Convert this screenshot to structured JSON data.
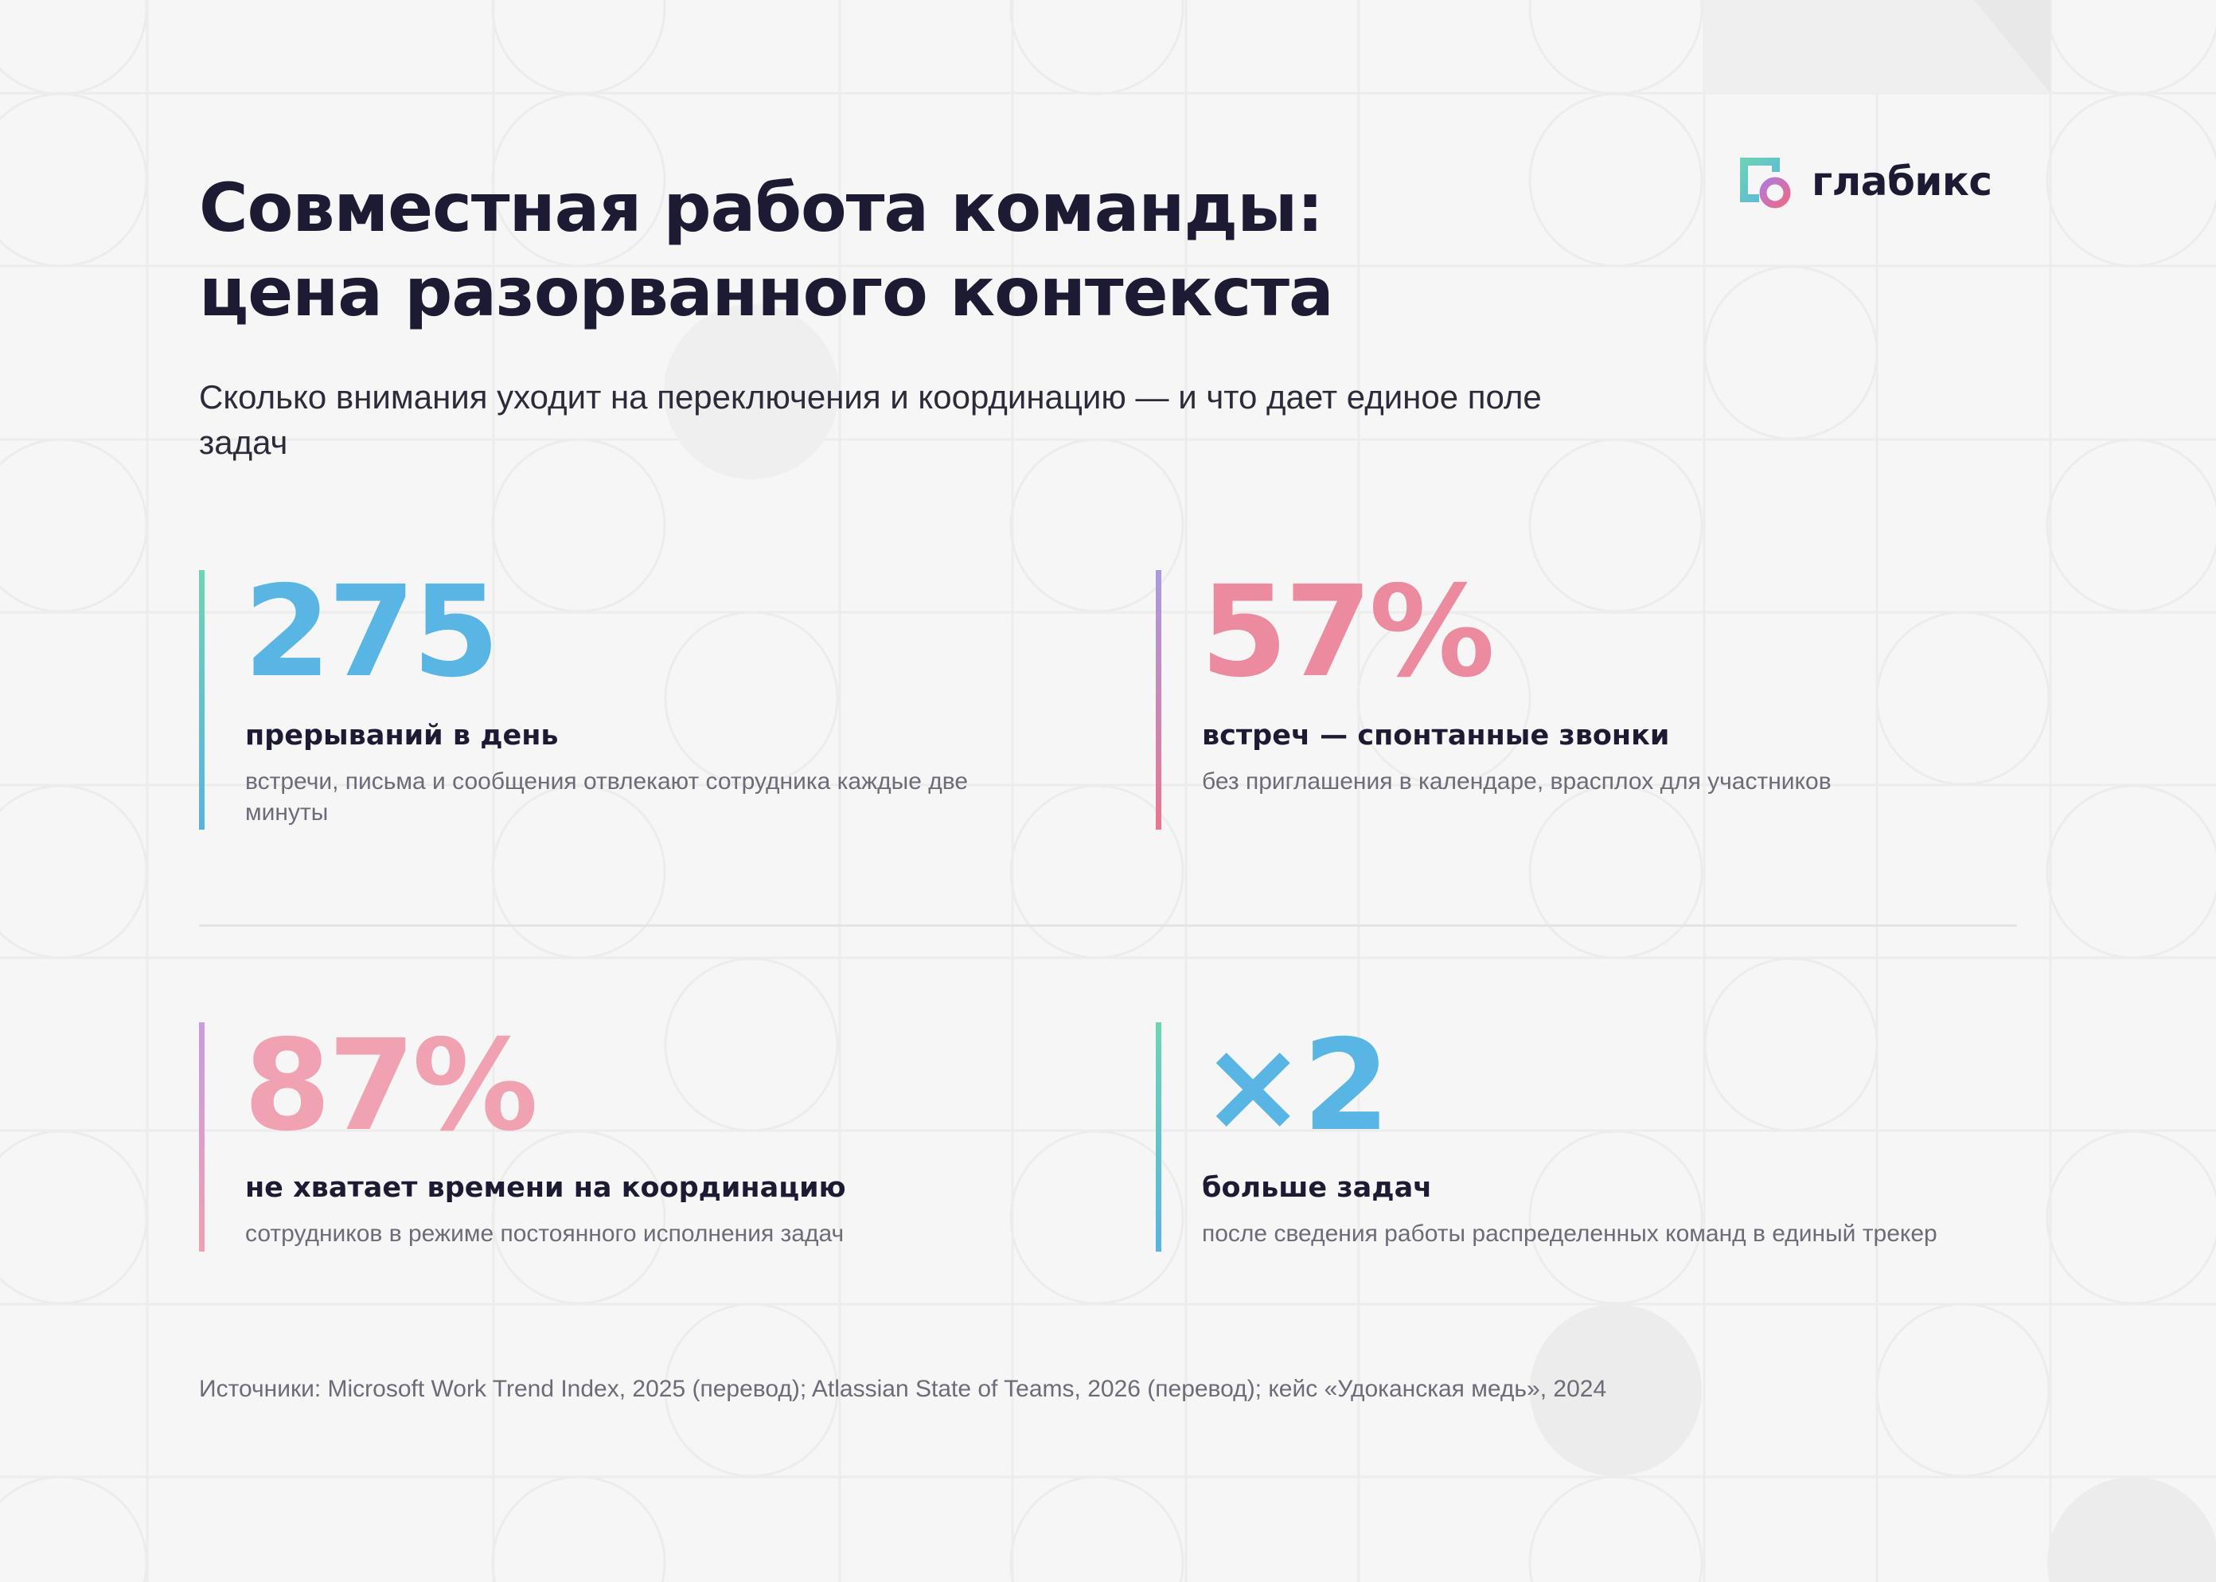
{
  "brand": {
    "name": "глабикс",
    "colors": {
      "green": "#6fd4b4",
      "blue": "#59b5e3",
      "pink": "#ec8aa0",
      "purple": "#b07ad9",
      "dark": "#1d1b33"
    }
  },
  "header": {
    "title_line1": "Совместная работа команды:",
    "title_line2": "цена разорванного контекста",
    "subtitle": "Сколько внимания уходит на переключения и координацию — и что дает единое поле задач"
  },
  "stats": [
    {
      "value": "275",
      "label": "прерываний в день",
      "description": "встречи, письма и сообщения отвлекают сотрудника каждые две минуты"
    },
    {
      "value": "57%",
      "label": "встреч — спонтанные звонки",
      "description": "без приглашения в календаре, врасплох для участников"
    },
    {
      "value": "87%",
      "label": "не хватает времени на координацию",
      "description": "сотрудников в режиме постоянного исполнения задач"
    },
    {
      "value": "×2",
      "label": "больше задач",
      "description": "после сведения работы распределенных команд в единый трекер"
    }
  ],
  "footer": {
    "sources": "Источники: Microsoft Work Trend Index, 2025 (перевод); Atlassian State of Teams, 2026 (перевод); кейс «Удоканская медь», 2024"
  }
}
